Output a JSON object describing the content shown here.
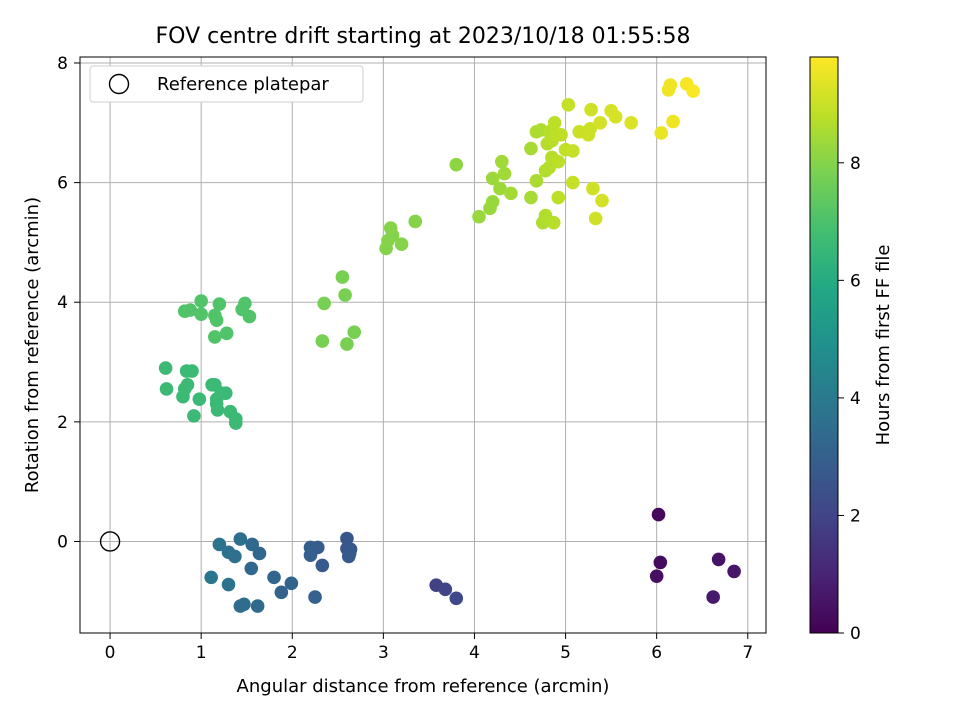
{
  "chart_data": {
    "type": "scatter",
    "title": "FOV centre drift starting at 2023/10/18 01:55:58",
    "xlabel": "Angular distance from reference (arcmin)",
    "ylabel": "Rotation from reference (arcmin)",
    "xlim": [
      -0.33,
      7.2
    ],
    "ylim": [
      -1.53,
      8.1
    ],
    "xticks": [
      0,
      1,
      2,
      3,
      4,
      5,
      6,
      7
    ],
    "yticks": [
      0,
      2,
      4,
      6,
      8
    ],
    "grid": true,
    "legend": {
      "placement": "top-left",
      "entries": [
        "Reference platepar"
      ]
    },
    "reference_point": {
      "x": 0,
      "y": 0
    },
    "colorbar": {
      "label": "Hours from first FF file",
      "range": [
        0,
        9.8
      ],
      "ticks": [
        0,
        2,
        4,
        6,
        8
      ],
      "colormap": "viridis"
    },
    "points": [
      {
        "x": 6.02,
        "y": 0.45,
        "t": 0.2
      },
      {
        "x": 6.04,
        "y": -0.35,
        "t": 0.3
      },
      {
        "x": 6.0,
        "y": -0.58,
        "t": 0.4
      },
      {
        "x": 6.68,
        "y": -0.3,
        "t": 0.5
      },
      {
        "x": 6.85,
        "y": -0.5,
        "t": 0.6
      },
      {
        "x": 6.62,
        "y": -0.93,
        "t": 0.7
      },
      {
        "x": 3.58,
        "y": -0.73,
        "t": 1.9
      },
      {
        "x": 3.68,
        "y": -0.8,
        "t": 2.0
      },
      {
        "x": 3.8,
        "y": -0.95,
        "t": 2.1
      },
      {
        "x": 2.6,
        "y": 0.05,
        "t": 2.6
      },
      {
        "x": 2.6,
        "y": -0.12,
        "t": 2.65
      },
      {
        "x": 2.63,
        "y": -0.2,
        "t": 2.7
      },
      {
        "x": 2.64,
        "y": -0.13,
        "t": 2.7
      },
      {
        "x": 2.62,
        "y": -0.25,
        "t": 2.75
      },
      {
        "x": 2.33,
        "y": -0.4,
        "t": 2.8
      },
      {
        "x": 2.28,
        "y": -0.1,
        "t": 2.85
      },
      {
        "x": 2.2,
        "y": -0.1,
        "t": 2.9
      },
      {
        "x": 2.2,
        "y": -0.23,
        "t": 2.95
      },
      {
        "x": 2.25,
        "y": -0.93,
        "t": 3.0
      },
      {
        "x": 1.88,
        "y": -0.85,
        "t": 3.1
      },
      {
        "x": 1.99,
        "y": -0.7,
        "t": 3.15
      },
      {
        "x": 1.8,
        "y": -0.6,
        "t": 3.2
      },
      {
        "x": 1.64,
        "y": -0.2,
        "t": 3.25
      },
      {
        "x": 1.56,
        "y": -0.05,
        "t": 3.3
      },
      {
        "x": 1.55,
        "y": -0.45,
        "t": 3.35
      },
      {
        "x": 1.62,
        "y": -1.08,
        "t": 3.4
      },
      {
        "x": 1.47,
        "y": -1.05,
        "t": 3.45
      },
      {
        "x": 1.43,
        "y": -1.08,
        "t": 3.5
      },
      {
        "x": 1.43,
        "y": 0.04,
        "t": 3.55
      },
      {
        "x": 1.37,
        "y": -0.25,
        "t": 3.6
      },
      {
        "x": 1.3,
        "y": -0.18,
        "t": 3.65
      },
      {
        "x": 1.3,
        "y": -0.72,
        "t": 3.7
      },
      {
        "x": 1.2,
        "y": -0.05,
        "t": 3.75
      },
      {
        "x": 1.11,
        "y": -0.6,
        "t": 3.8
      },
      {
        "x": 0.61,
        "y": 2.9,
        "t": 6.6
      },
      {
        "x": 0.62,
        "y": 2.55,
        "t": 6.6
      },
      {
        "x": 0.8,
        "y": 2.42,
        "t": 6.6
      },
      {
        "x": 0.82,
        "y": 2.55,
        "t": 6.6
      },
      {
        "x": 0.85,
        "y": 2.62,
        "t": 6.6
      },
      {
        "x": 0.84,
        "y": 2.85,
        "t": 6.6
      },
      {
        "x": 0.9,
        "y": 2.85,
        "t": 6.6
      },
      {
        "x": 0.98,
        "y": 2.38,
        "t": 6.6
      },
      {
        "x": 0.92,
        "y": 2.1,
        "t": 6.6
      },
      {
        "x": 1.12,
        "y": 2.62,
        "t": 6.6
      },
      {
        "x": 1.15,
        "y": 2.62,
        "t": 6.6
      },
      {
        "x": 1.17,
        "y": 2.38,
        "t": 6.6
      },
      {
        "x": 1.17,
        "y": 2.3,
        "t": 6.6
      },
      {
        "x": 1.18,
        "y": 2.2,
        "t": 6.6
      },
      {
        "x": 1.22,
        "y": 2.48,
        "t": 6.6
      },
      {
        "x": 1.27,
        "y": 2.48,
        "t": 6.6
      },
      {
        "x": 1.32,
        "y": 2.17,
        "t": 6.6
      },
      {
        "x": 1.38,
        "y": 2.05,
        "t": 6.6
      },
      {
        "x": 1.38,
        "y": 1.98,
        "t": 6.6
      },
      {
        "x": 0.82,
        "y": 3.85,
        "t": 7.1
      },
      {
        "x": 0.88,
        "y": 3.87,
        "t": 7.1
      },
      {
        "x": 1.0,
        "y": 4.02,
        "t": 7.1
      },
      {
        "x": 1.0,
        "y": 3.8,
        "t": 7.1
      },
      {
        "x": 1.15,
        "y": 3.78,
        "t": 7.1
      },
      {
        "x": 1.17,
        "y": 3.7,
        "t": 7.1
      },
      {
        "x": 1.2,
        "y": 3.97,
        "t": 7.1
      },
      {
        "x": 1.15,
        "y": 3.42,
        "t": 7.1
      },
      {
        "x": 1.28,
        "y": 3.48,
        "t": 7.1
      },
      {
        "x": 1.45,
        "y": 3.88,
        "t": 7.1
      },
      {
        "x": 1.48,
        "y": 3.98,
        "t": 7.1
      },
      {
        "x": 1.53,
        "y": 3.76,
        "t": 7.1
      },
      {
        "x": 2.55,
        "y": 4.42,
        "t": 7.8
      },
      {
        "x": 2.58,
        "y": 4.12,
        "t": 7.8
      },
      {
        "x": 2.35,
        "y": 3.98,
        "t": 7.8
      },
      {
        "x": 2.33,
        "y": 3.35,
        "t": 7.8
      },
      {
        "x": 2.6,
        "y": 3.3,
        "t": 7.8
      },
      {
        "x": 2.68,
        "y": 3.5,
        "t": 7.8
      },
      {
        "x": 3.08,
        "y": 5.24,
        "t": 8.0
      },
      {
        "x": 3.1,
        "y": 5.12,
        "t": 8.0
      },
      {
        "x": 3.05,
        "y": 5.03,
        "t": 8.0
      },
      {
        "x": 3.03,
        "y": 4.9,
        "t": 8.0
      },
      {
        "x": 3.2,
        "y": 4.97,
        "t": 8.0
      },
      {
        "x": 3.35,
        "y": 5.35,
        "t": 8.0
      },
      {
        "x": 3.8,
        "y": 6.3,
        "t": 8.15
      },
      {
        "x": 4.05,
        "y": 5.43,
        "t": 8.3
      },
      {
        "x": 4.17,
        "y": 5.57,
        "t": 8.3
      },
      {
        "x": 4.2,
        "y": 5.68,
        "t": 8.3
      },
      {
        "x": 4.2,
        "y": 6.07,
        "t": 8.35
      },
      {
        "x": 4.28,
        "y": 5.9,
        "t": 8.35
      },
      {
        "x": 4.3,
        "y": 6.35,
        "t": 8.4
      },
      {
        "x": 4.33,
        "y": 6.15,
        "t": 8.4
      },
      {
        "x": 4.4,
        "y": 5.82,
        "t": 8.45
      },
      {
        "x": 4.62,
        "y": 6.57,
        "t": 8.5
      },
      {
        "x": 4.62,
        "y": 5.75,
        "t": 8.5
      },
      {
        "x": 4.68,
        "y": 6.03,
        "t": 8.55
      },
      {
        "x": 4.68,
        "y": 6.85,
        "t": 8.6
      },
      {
        "x": 4.73,
        "y": 6.88,
        "t": 8.6
      },
      {
        "x": 4.75,
        "y": 5.33,
        "t": 8.6
      },
      {
        "x": 4.78,
        "y": 5.45,
        "t": 8.65
      },
      {
        "x": 4.78,
        "y": 6.2,
        "t": 8.65
      },
      {
        "x": 4.8,
        "y": 6.65,
        "t": 8.7
      },
      {
        "x": 4.82,
        "y": 6.85,
        "t": 8.7
      },
      {
        "x": 4.82,
        "y": 6.25,
        "t": 8.7
      },
      {
        "x": 4.85,
        "y": 6.7,
        "t": 8.75
      },
      {
        "x": 4.85,
        "y": 6.42,
        "t": 8.75
      },
      {
        "x": 4.87,
        "y": 5.33,
        "t": 8.75
      },
      {
        "x": 4.88,
        "y": 7.0,
        "t": 8.8
      },
      {
        "x": 4.9,
        "y": 6.8,
        "t": 8.8
      },
      {
        "x": 4.92,
        "y": 6.35,
        "t": 8.8
      },
      {
        "x": 4.92,
        "y": 5.75,
        "t": 8.8
      },
      {
        "x": 4.95,
        "y": 6.8,
        "t": 8.85
      },
      {
        "x": 5.0,
        "y": 6.55,
        "t": 8.9
      },
      {
        "x": 5.03,
        "y": 7.3,
        "t": 8.95
      },
      {
        "x": 5.08,
        "y": 6.53,
        "t": 8.95
      },
      {
        "x": 5.08,
        "y": 6.0,
        "t": 8.95
      },
      {
        "x": 5.15,
        "y": 6.85,
        "t": 9.0
      },
      {
        "x": 5.25,
        "y": 6.8,
        "t": 9.05
      },
      {
        "x": 5.27,
        "y": 6.9,
        "t": 9.05
      },
      {
        "x": 5.28,
        "y": 7.22,
        "t": 9.1
      },
      {
        "x": 5.3,
        "y": 5.9,
        "t": 9.1
      },
      {
        "x": 5.33,
        "y": 5.4,
        "t": 9.1
      },
      {
        "x": 5.38,
        "y": 7.0,
        "t": 9.15
      },
      {
        "x": 5.4,
        "y": 5.7,
        "t": 9.15
      },
      {
        "x": 5.5,
        "y": 7.2,
        "t": 9.2
      },
      {
        "x": 5.55,
        "y": 7.1,
        "t": 9.2
      },
      {
        "x": 5.72,
        "y": 7.0,
        "t": 9.3
      },
      {
        "x": 6.05,
        "y": 6.83,
        "t": 9.5
      },
      {
        "x": 6.13,
        "y": 7.55,
        "t": 9.55
      },
      {
        "x": 6.15,
        "y": 7.63,
        "t": 9.6
      },
      {
        "x": 6.18,
        "y": 7.02,
        "t": 9.6
      },
      {
        "x": 6.33,
        "y": 7.65,
        "t": 9.7
      },
      {
        "x": 6.4,
        "y": 7.53,
        "t": 9.75
      }
    ]
  }
}
